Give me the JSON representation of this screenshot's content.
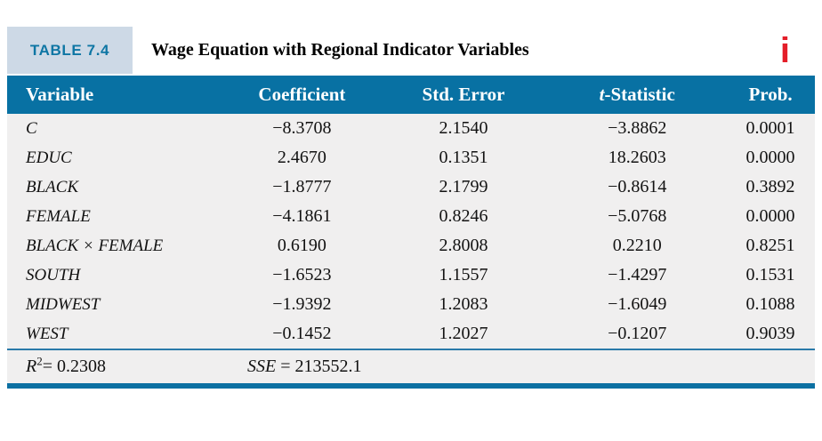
{
  "caption": {
    "label": "TABLE 7.4",
    "title": "Wage Equation with Regional Indicator Variables",
    "info_glyph": "i"
  },
  "table": {
    "headers": [
      {
        "key": "variable",
        "text": "Variable"
      },
      {
        "key": "coefficient",
        "text": "Coefficient"
      },
      {
        "key": "std_error",
        "text": "Std. Error"
      },
      {
        "key": "t_statistic",
        "italic_prefix": "t",
        "text": "-Statistic"
      },
      {
        "key": "prob",
        "text": "Prob."
      }
    ],
    "rows": [
      {
        "variable": "C",
        "coefficient": "−8.3708",
        "std_error": "2.1540",
        "t_statistic": "−3.8862",
        "prob": "0.0001"
      },
      {
        "variable": "EDUC",
        "coefficient": "2.4670",
        "std_error": "0.1351",
        "t_statistic": "18.2603",
        "prob": "0.0000"
      },
      {
        "variable": "BLACK",
        "coefficient": "−1.8777",
        "std_error": "2.1799",
        "t_statistic": "−0.8614",
        "prob": "0.3892"
      },
      {
        "variable": "FEMALE",
        "coefficient": "−4.1861",
        "std_error": "0.8246",
        "t_statistic": "−5.0768",
        "prob": "0.0000"
      },
      {
        "variable": "BLACK × FEMALE",
        "coefficient": "0.6190",
        "std_error": "2.8008",
        "t_statistic": "0.2210",
        "prob": "0.8251"
      },
      {
        "variable": "SOUTH",
        "coefficient": "−1.6523",
        "std_error": "1.1557",
        "t_statistic": "−1.4297",
        "prob": "0.1531"
      },
      {
        "variable": "MIDWEST",
        "coefficient": "−1.9392",
        "std_error": "1.2083",
        "t_statistic": "−1.6049",
        "prob": "0.1088"
      },
      {
        "variable": "WEST",
        "coefficient": "−0.1452",
        "std_error": "1.2027",
        "t_statistic": "−0.1207",
        "prob": "0.9039"
      }
    ]
  },
  "footer": {
    "r2_var": "R",
    "r2_sup": "2",
    "r2_eq": "= 0.2308",
    "sse_var": "SSE",
    "sse_eq": " = 213552.1"
  },
  "colors": {
    "header_bg": "#0871a3",
    "label_bg": "#cdd9e6",
    "label_text": "#0e76a4",
    "body_bg": "#f0efef",
    "thin_line": "#2a7aa9",
    "thick_line": "#0c70a2",
    "info_red": "#e41e29"
  }
}
